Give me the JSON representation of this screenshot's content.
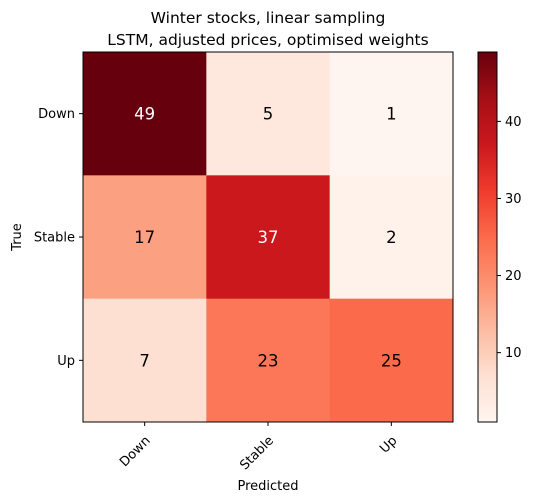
{
  "chart_data": {
    "type": "heatmap",
    "title_lines": [
      "Winter stocks, linear sampling",
      "LSTM, adjusted prices, optimised weights"
    ],
    "xlabel": "Predicted",
    "ylabel": "True",
    "x_categories": [
      "Down",
      "Stable",
      "Up"
    ],
    "y_categories": [
      "Down",
      "Stable",
      "Up"
    ],
    "values": [
      [
        49,
        5,
        1
      ],
      [
        17,
        37,
        2
      ],
      [
        7,
        23,
        25
      ]
    ],
    "colormap": "Reds",
    "vmin": 1,
    "vmax": 49,
    "colorbar_ticks": [
      "10",
      "20",
      "30",
      "40"
    ],
    "colorbar_tick_values": [
      10,
      20,
      30,
      40
    ],
    "text_color_light": "#ffffff",
    "text_color_dark": "#000000"
  }
}
